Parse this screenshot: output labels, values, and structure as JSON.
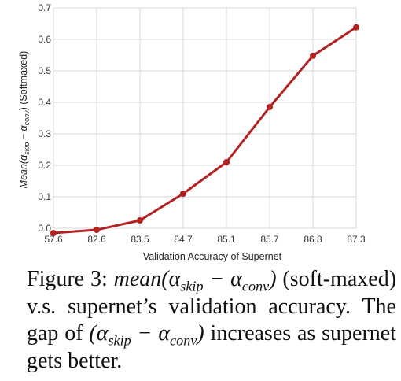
{
  "chart_data": {
    "type": "line",
    "x_categories": [
      "57.6",
      "82.6",
      "83.5",
      "84.7",
      "85.1",
      "85.7",
      "86.8",
      "87.3"
    ],
    "values": [
      -0.015,
      -0.005,
      0.025,
      0.11,
      0.21,
      0.385,
      0.548,
      0.638
    ],
    "yticks": [
      "0.0",
      "0.1",
      "0.2",
      "0.3",
      "0.4",
      "0.5",
      "0.6",
      "0.7"
    ],
    "ylim": [
      0.0,
      0.7
    ],
    "xlabel": "Validation Accuracy of Supernet",
    "ylabel_parts": {
      "pre": "Mean(α",
      "sub1": "skip",
      "mid": " − α",
      "sub2": "conv",
      "post": ") (Softmaxed)"
    },
    "grid": true,
    "line_color": "#b22222"
  },
  "caption": {
    "label": "Figure 3:",
    "math_mean": "mean",
    "math_open": "(α",
    "sub_skip": "skip",
    "math_minus": " − α",
    "sub_conv": "conv",
    "math_close": ")",
    "text1": " (soft-maxed) v.s. supernet’s validation accuracy. The gap of ",
    "math2_open": "(α",
    "sub2_skip": "skip",
    "math2_minus": " − α",
    "sub2_conv": "conv",
    "math2_close": ")",
    "text2": " increases as supernet gets better."
  }
}
